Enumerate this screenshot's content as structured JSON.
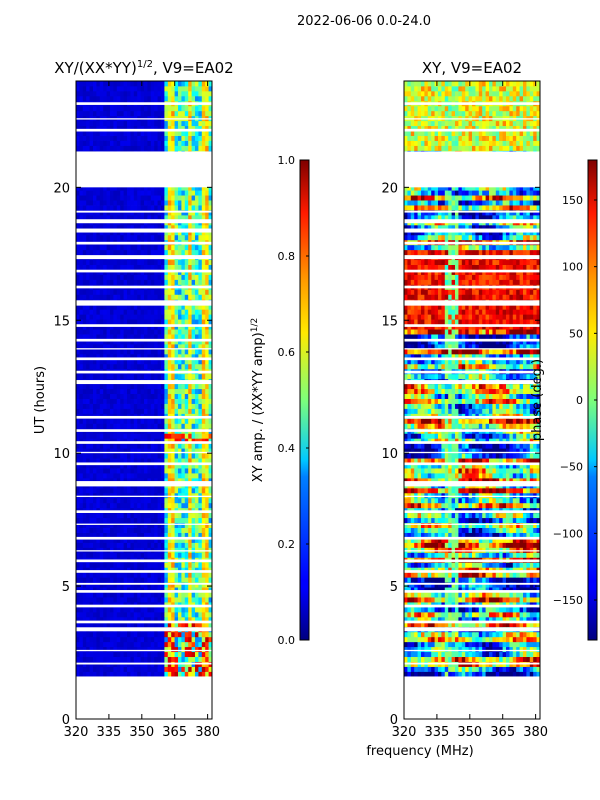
{
  "suptitle": "2022-06-06 0.0-24.0",
  "chart_data": [
    {
      "type": "heatmap",
      "title": "XY/(XX*YY)1/2, V9=EA02",
      "title_base": "XY/(XX*YY)",
      "title_sup": "1/2",
      "title_tail": ", V9=EA02",
      "xlabel": "",
      "ylabel": "UT (hours)",
      "xlim": [
        320,
        382
      ],
      "ylim": [
        0,
        24
      ],
      "xticks": [
        "320",
        "335",
        "350",
        "365",
        "380"
      ],
      "xtick_values": [
        320,
        335,
        350,
        365,
        380
      ],
      "yticks": [
        "0",
        "5",
        "10",
        "15",
        "20"
      ],
      "ytick_values": [
        0,
        5,
        10,
        15,
        20
      ],
      "data_start_hour": 1.6,
      "flagged_rfi_band_mhz": [
        320,
        360
      ],
      "colorbar": {
        "label": "XY amp. / (XX*YY amp)1/2",
        "label_base": "XY amp. / (XX*YY amp)",
        "label_sup": "1/2",
        "range": [
          0.0,
          1.0
        ],
        "ticks": [
          "0.0",
          "0.2",
          "0.4",
          "0.6",
          "0.8",
          "1.0"
        ],
        "tick_values": [
          0.0,
          0.2,
          0.4,
          0.6,
          0.8,
          1.0
        ],
        "colormap": "jet"
      }
    },
    {
      "type": "heatmap",
      "title": "XY, V9=EA02",
      "xlabel": "frequency (MHz)",
      "ylabel": "",
      "xlim": [
        320,
        382
      ],
      "ylim": [
        0,
        24
      ],
      "xticks": [
        "320",
        "335",
        "350",
        "365",
        "380"
      ],
      "xtick_values": [
        320,
        335,
        350,
        365,
        380
      ],
      "yticks": [
        "0",
        "5",
        "10",
        "15",
        "20"
      ],
      "ytick_values": [
        0,
        5,
        10,
        15,
        20
      ],
      "data_start_hour": 1.6,
      "colorbar": {
        "label": "phase (deg.)",
        "range": [
          -180,
          180
        ],
        "ticks": [
          "−150",
          "−100",
          "−50",
          "0",
          "50",
          "100",
          "150"
        ],
        "tick_values": [
          -150,
          -100,
          -50,
          0,
          50,
          100,
          150
        ],
        "colormap": "jet"
      }
    }
  ],
  "flagged_hour_gaps": [
    [
      2.05,
      2.12
    ],
    [
      2.55,
      2.6
    ],
    [
      3.3,
      3.45
    ],
    [
      3.6,
      3.7
    ],
    [
      4.2,
      4.3
    ],
    [
      4.75,
      4.85
    ],
    [
      5.05,
      5.12
    ],
    [
      5.5,
      5.6
    ],
    [
      5.9,
      6.0
    ],
    [
      6.3,
      6.35
    ],
    [
      6.75,
      6.85
    ],
    [
      7.3,
      7.35
    ],
    [
      7.75,
      7.85
    ],
    [
      8.35,
      8.4
    ],
    [
      8.75,
      8.95
    ],
    [
      9.55,
      9.65
    ],
    [
      10.0,
      10.05
    ],
    [
      10.35,
      10.45
    ],
    [
      10.8,
      10.9
    ],
    [
      11.3,
      11.4
    ],
    [
      12.6,
      12.75
    ],
    [
      13.0,
      13.1
    ],
    [
      13.5,
      13.6
    ],
    [
      13.9,
      13.95
    ],
    [
      14.2,
      14.3
    ],
    [
      14.75,
      14.85
    ],
    [
      15.55,
      15.75
    ],
    [
      16.2,
      16.3
    ],
    [
      16.8,
      16.9
    ],
    [
      17.3,
      17.45
    ],
    [
      17.85,
      17.95
    ],
    [
      18.3,
      18.45
    ],
    [
      18.65,
      18.8
    ],
    [
      19.05,
      19.12
    ],
    [
      20.0,
      21.35
    ],
    [
      22.1,
      22.2
    ],
    [
      22.55,
      22.6
    ],
    [
      23.1,
      23.2
    ]
  ]
}
